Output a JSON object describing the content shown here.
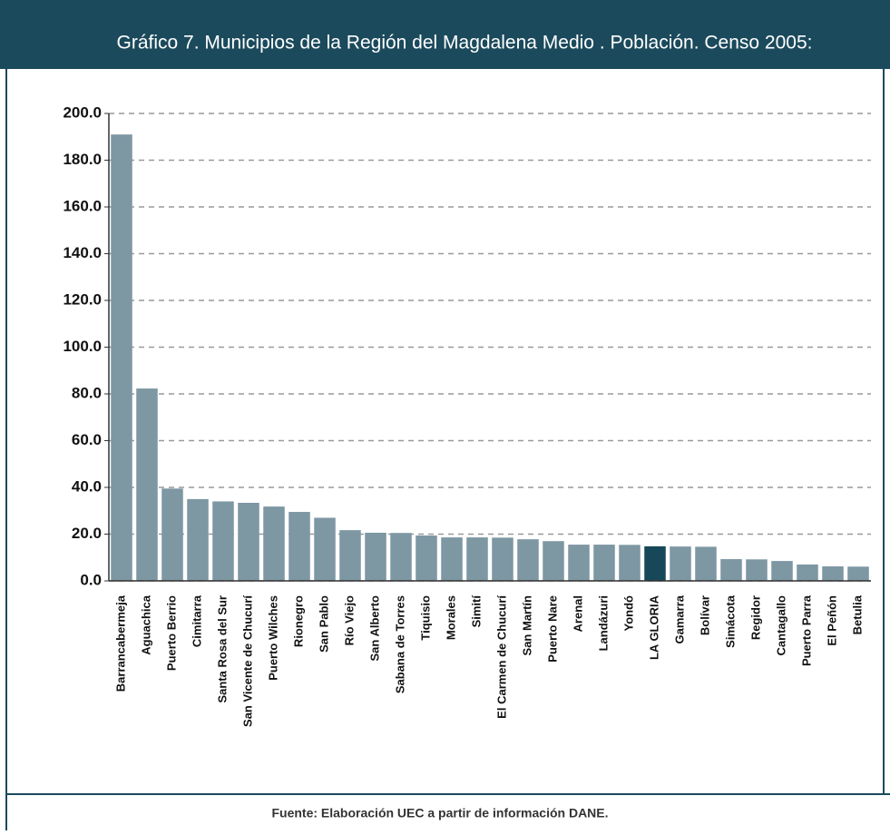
{
  "chart_data": {
    "type": "bar",
    "title": "Gráfico 7. Municipios de la Región del Magdalena Medio . Población. Censo 2005:",
    "source": "Fuente: Elaboración UEC a partir de información DANE.",
    "categories": [
      "Barrancabermeja",
      "Aguachica",
      "Puerto Berrio",
      "Cimitarra",
      "Santa Rosa del Sur",
      "San Vicente de Chucurí",
      "Puerto Wilches",
      "Rionegro",
      "San Pablo",
      "Río Viejo",
      "San Alberto",
      "Sabana de Torres",
      "Tiquisio",
      "Morales",
      "Simití",
      "El Carmen de Chucurí",
      "San Martín",
      "Puerto Nare",
      "Arenal",
      "Landázuri",
      "Yondó",
      "LA GLORIA",
      "Gamarra",
      "Bolívar",
      "Simácota",
      "Regidor",
      "Cantagallo",
      "Puerto Parra",
      "El Peñón",
      "Betulia"
    ],
    "values": [
      191,
      82.3,
      39.5,
      35,
      34,
      33.4,
      31.8,
      29.5,
      27,
      21.7,
      20.6,
      20.5,
      19.4,
      18.6,
      18.6,
      18.5,
      17.8,
      17,
      15.5,
      15.5,
      15.4,
      14.8,
      14.7,
      14.6,
      9.3,
      9.2,
      8.5,
      7,
      6.2,
      6.1
    ],
    "colors": [
      "#7d97a3",
      "#7d97a3",
      "#7d97a3",
      "#7d97a3",
      "#7d97a3",
      "#7d97a3",
      "#7d97a3",
      "#7d97a3",
      "#7d97a3",
      "#7d97a3",
      "#7d97a3",
      "#7d97a3",
      "#7d97a3",
      "#7d97a3",
      "#7d97a3",
      "#7d97a3",
      "#7d97a3",
      "#7d97a3",
      "#7d97a3",
      "#7d97a3",
      "#7d97a3",
      "#17485a",
      "#7d97a3",
      "#7d97a3",
      "#7d97a3",
      "#7d97a3",
      "#7d97a3",
      "#7d97a3",
      "#7d97a3",
      "#7d97a3"
    ],
    "ylim": [
      0,
      200
    ],
    "yticks": [
      {
        "value": 0,
        "label": "0.0"
      },
      {
        "value": 20,
        "label": "20.0"
      },
      {
        "value": 40,
        "label": "40.0"
      },
      {
        "value": 60,
        "label": "60.0"
      },
      {
        "value": 80,
        "label": "80.0"
      },
      {
        "value": 100,
        "label": "100.0"
      },
      {
        "value": 120,
        "label": "120.0"
      },
      {
        "value": 140,
        "label": "140.0"
      },
      {
        "value": 160,
        "label": "160.0"
      },
      {
        "value": 180,
        "label": "180.0"
      },
      {
        "value": 200,
        "label": "200.0"
      }
    ],
    "grid": true
  }
}
